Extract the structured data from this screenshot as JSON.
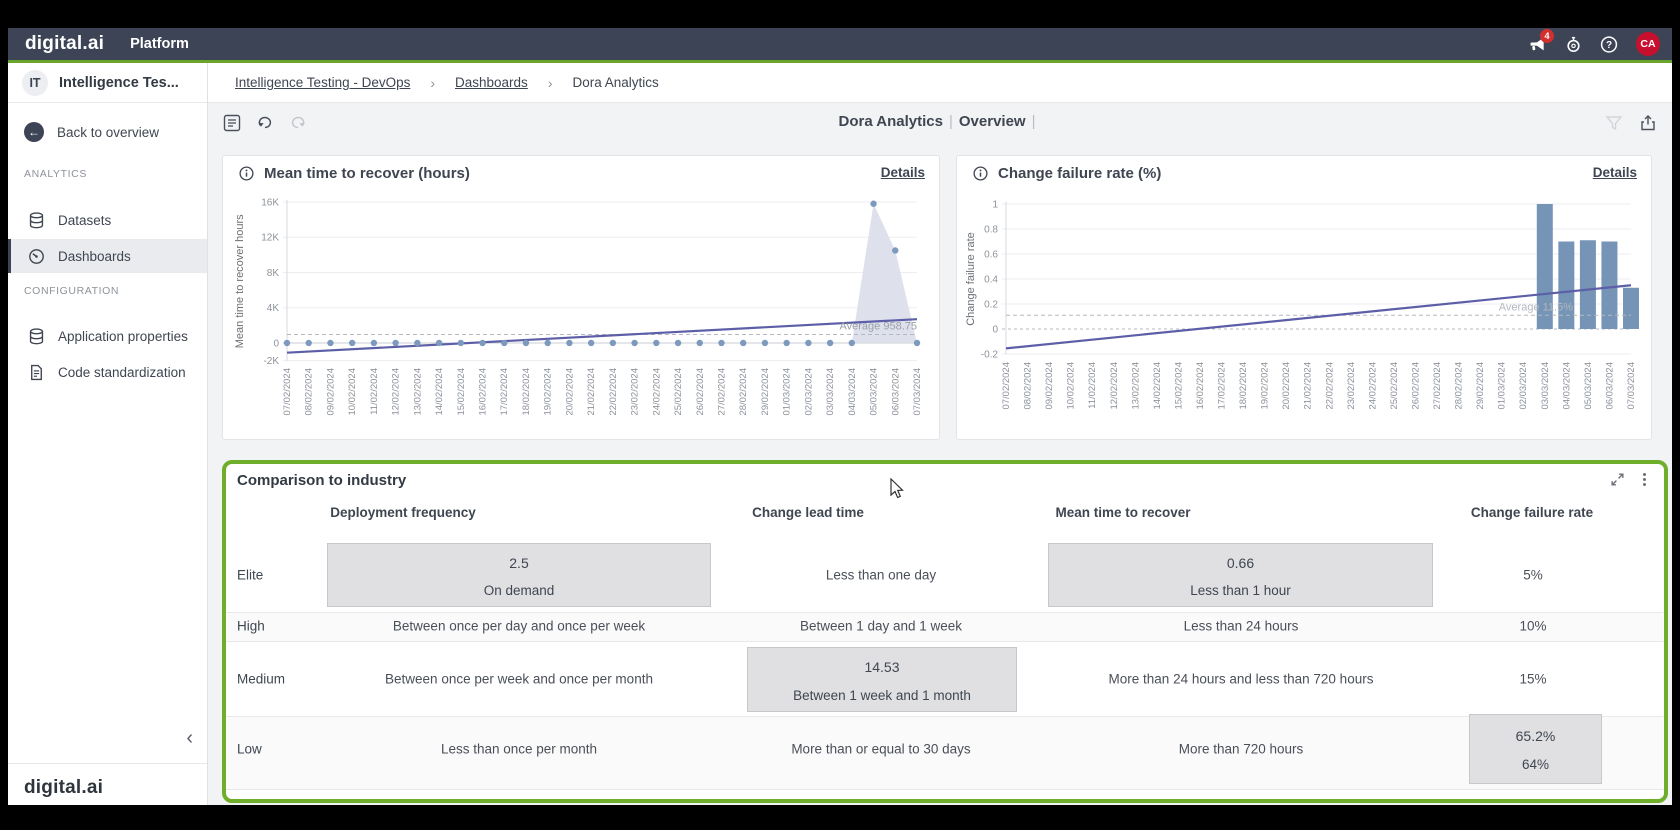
{
  "topbar": {
    "logo": "digital.ai",
    "product": "Platform",
    "notifications_badge": "4",
    "avatar_initials": "CA"
  },
  "sidebar": {
    "workspace_initials": "IT",
    "workspace_name": "Intelligence Tes...",
    "back_label": "Back to overview",
    "sections": [
      {
        "label": "ANALYTICS",
        "items": [
          {
            "label": "Datasets",
            "icon": "database-icon",
            "selected": false
          },
          {
            "label": "Dashboards",
            "icon": "dashboard-icon",
            "selected": true
          }
        ]
      },
      {
        "label": "CONFIGURATION",
        "items": [
          {
            "label": "Application properties",
            "icon": "database-icon",
            "selected": false
          },
          {
            "label": "Code standardization",
            "icon": "document-icon",
            "selected": false
          }
        ]
      }
    ],
    "footer_logo": "digital.ai"
  },
  "breadcrumb": {
    "items": [
      {
        "label": "Intelligence Testing - DevOps",
        "link": true
      },
      {
        "label": "Dashboards",
        "link": true
      },
      {
        "label": "Dora Analytics",
        "link": false
      }
    ],
    "separator": "›"
  },
  "toolbar": {
    "title": "Dora Analytics",
    "separator": "|",
    "view": "Overview"
  },
  "colors": {
    "accent_green": "#69a42d",
    "navbar": "#3c4455",
    "trend_line": "#5c5fa7",
    "dot": "#7d99bd",
    "bar": "#7694b6",
    "area": "#dcdfeb",
    "badge_red": "#d32f2f",
    "avatar_red": "#c8102e",
    "highlight_cell": "#e0e0e2"
  },
  "chart_data": [
    {
      "type": "area",
      "title": "Mean time to recover (hours)",
      "details_label": "Details",
      "ylabel": "Mean time to recover hours",
      "ylim": [
        -2000,
        16000
      ],
      "yticks": [
        16000,
        12000,
        8000,
        4000,
        0,
        -2000
      ],
      "ytick_labels": [
        "16K",
        "12K",
        "8K",
        "4K",
        "0",
        "-2K"
      ],
      "categories": [
        "07/02/2024",
        "08/02/2024",
        "09/02/2024",
        "10/02/2024",
        "11/02/2024",
        "12/02/2024",
        "13/02/2024",
        "14/02/2024",
        "15/02/2024",
        "16/02/2024",
        "17/02/2024",
        "18/02/2024",
        "19/02/2024",
        "20/02/2024",
        "21/02/2024",
        "22/02/2024",
        "23/02/2024",
        "24/02/2024",
        "25/02/2024",
        "26/02/2024",
        "27/02/2024",
        "28/02/2024",
        "29/02/2024",
        "01/03/2024",
        "02/03/2024",
        "03/03/2024",
        "04/03/2024",
        "05/03/2024",
        "06/03/2024",
        "07/03/2024"
      ],
      "values": [
        0,
        0,
        0,
        0,
        0,
        0,
        0,
        0,
        0,
        0,
        0,
        0,
        0,
        0,
        0,
        0,
        0,
        0,
        0,
        0,
        0,
        0,
        0,
        0,
        0,
        0,
        0,
        15800,
        10500,
        0
      ],
      "trend": {
        "start": -1100,
        "end": 2700
      },
      "average": 958.75,
      "average_label": "Average 958.75",
      "grid": true,
      "legend": "none"
    },
    {
      "type": "bar",
      "title": "Change failure rate (%)",
      "details_label": "Details",
      "ylabel": "Change failure rate",
      "ylim": [
        -0.2,
        1
      ],
      "yticks": [
        1,
        0.8,
        0.6,
        0.4,
        0.2,
        0,
        -0.2
      ],
      "ytick_labels": [
        "1",
        "0.8",
        "0.6",
        "0.4",
        "0.2",
        "0",
        "-0.2"
      ],
      "categories": [
        "07/02/2024",
        "08/02/2024",
        "09/02/2024",
        "10/02/2024",
        "11/02/2024",
        "12/02/2024",
        "13/02/2024",
        "14/02/2024",
        "15/02/2024",
        "16/02/2024",
        "17/02/2024",
        "18/02/2024",
        "19/02/2024",
        "20/02/2024",
        "21/02/2024",
        "22/02/2024",
        "23/02/2024",
        "24/02/2024",
        "25/02/2024",
        "26/02/2024",
        "27/02/2024",
        "28/02/2024",
        "29/02/2024",
        "01/03/2024",
        "02/03/2024",
        "03/03/2024",
        "04/03/2024",
        "05/03/2024",
        "06/03/2024",
        "07/03/2024"
      ],
      "values": [
        null,
        null,
        null,
        null,
        null,
        null,
        null,
        null,
        null,
        null,
        null,
        null,
        null,
        null,
        null,
        null,
        null,
        null,
        null,
        null,
        null,
        null,
        null,
        null,
        null,
        1.0,
        0.7,
        0.71,
        0.7,
        0.33
      ],
      "trend": {
        "start": -0.155,
        "end": 0.35
      },
      "average": 0.11,
      "average_label": "Average 11.5%",
      "grid": true,
      "legend": "none"
    }
  ],
  "comparison": {
    "title": "Comparison to industry",
    "columns": [
      "Deployment frequency",
      "Change lead time",
      "Mean time to recover",
      "Change failure rate"
    ],
    "rows": [
      {
        "label": "Elite",
        "cells": [
          {
            "value": "2.5",
            "sub": "On demand",
            "highlight": true
          },
          {
            "text": "Less than one day"
          },
          {
            "value": "0.66",
            "sub": "Less than 1 hour",
            "highlight": true
          },
          {
            "text": "5%"
          }
        ]
      },
      {
        "label": "High",
        "cells": [
          {
            "text": "Between once per day and once per week"
          },
          {
            "text": "Between 1 day and 1 week"
          },
          {
            "text": "Less than 24 hours"
          },
          {
            "text": "10%"
          }
        ]
      },
      {
        "label": "Medium",
        "cells": [
          {
            "text": "Between once per week and once per month"
          },
          {
            "value": "14.53",
            "sub": "Between 1 week and 1 month",
            "highlight": true
          },
          {
            "text": "More than 24 hours and less than 720 hours"
          },
          {
            "text": "15%"
          }
        ]
      },
      {
        "label": "Low",
        "cells": [
          {
            "text": "Less than once per month"
          },
          {
            "text": "More than or equal to 30 days"
          },
          {
            "text": "More than 720 hours"
          },
          {
            "value": "65.2%",
            "sub": "64%",
            "highlight": true
          }
        ]
      }
    ]
  }
}
